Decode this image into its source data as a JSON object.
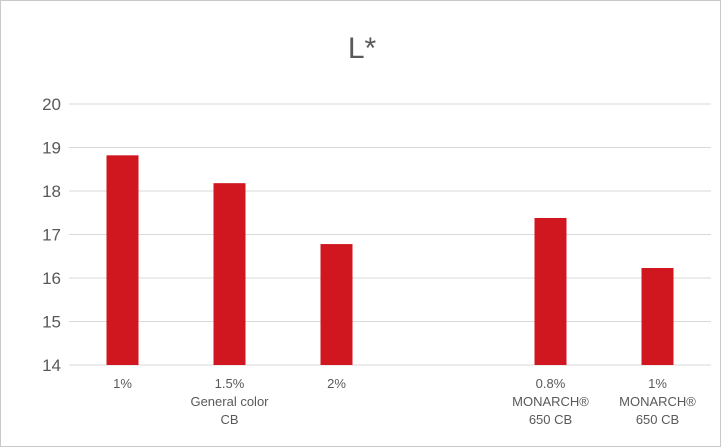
{
  "chart_data": {
    "type": "bar",
    "title": "L*",
    "xlabel": "",
    "ylabel": "",
    "ylim": [
      14,
      20
    ],
    "yticks": [
      14,
      15,
      16,
      17,
      18,
      19,
      20
    ],
    "grid": true,
    "legend": "none",
    "bar_color": "#d0161f",
    "categories": [
      {
        "lines": [
          "1%"
        ],
        "value": 18.82
      },
      {
        "lines": [
          "1.5%",
          "General color",
          "CB"
        ],
        "value": 18.18
      },
      {
        "lines": [
          "2%"
        ],
        "value": 16.78
      },
      {
        "lines": [],
        "value": null
      },
      {
        "lines": [
          "0.8%",
          "MONARCH®",
          "650 CB"
        ],
        "value": 17.38
      },
      {
        "lines": [
          "1%",
          "MONARCH®",
          "650 CB"
        ],
        "value": 16.23
      }
    ]
  }
}
